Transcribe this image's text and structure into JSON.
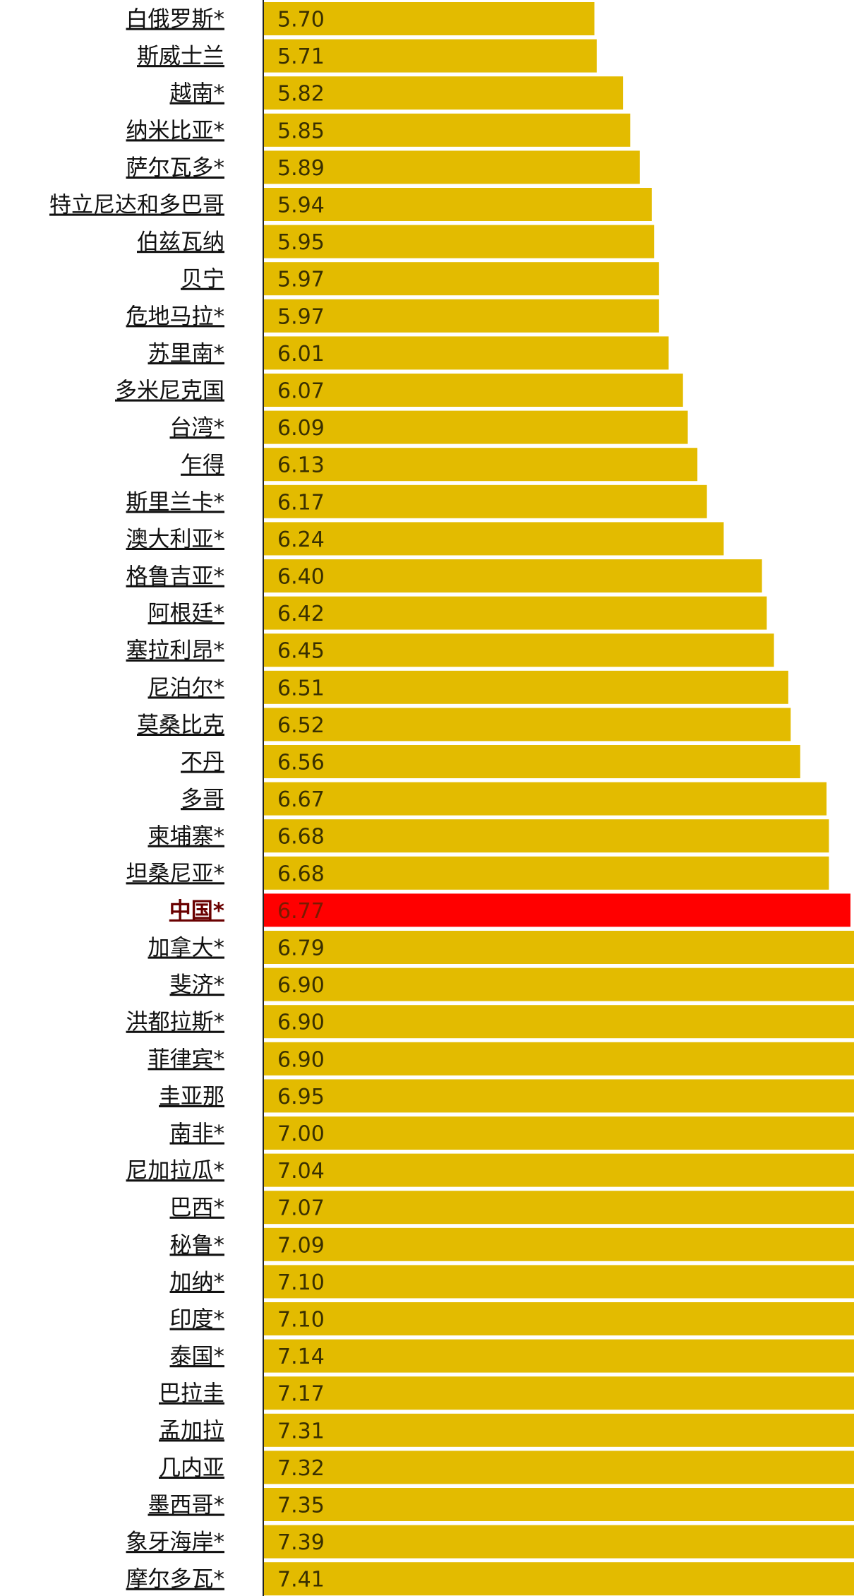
{
  "chart_data": {
    "type": "bar",
    "orientation": "horizontal",
    "categories": [
      "白俄罗斯*",
      "斯威士兰",
      "越南*",
      "纳米比亚*",
      "萨尔瓦多*",
      "特立尼达和多巴哥",
      "伯兹瓦纳",
      "贝宁",
      "危地马拉*",
      "苏里南*",
      "多米尼克国",
      "台湾*",
      "乍得",
      "斯里兰卡*",
      "澳大利亚*",
      "格鲁吉亚*",
      "阿根廷*",
      "塞拉利昂*",
      "尼泊尔*",
      "莫桑比克",
      "不丹",
      "多哥",
      "柬埔寨*",
      "坦桑尼亚*",
      "中国*",
      "加拿大*",
      "斐济*",
      "洪都拉斯*",
      "菲律宾*",
      "圭亚那",
      "南非*",
      "尼加拉瓜*",
      "巴西*",
      "秘鲁*",
      "加纳*",
      "印度*",
      "泰国*",
      "巴拉圭",
      "孟加拉",
      "几内亚",
      "墨西哥*",
      "象牙海岸*",
      "摩尔多瓦*"
    ],
    "values": [
      5.7,
      5.71,
      5.82,
      5.85,
      5.89,
      5.94,
      5.95,
      5.97,
      5.97,
      6.01,
      6.07,
      6.09,
      6.13,
      6.17,
      6.24,
      6.4,
      6.42,
      6.45,
      6.51,
      6.52,
      6.56,
      6.67,
      6.68,
      6.68,
      6.77,
      6.79,
      6.9,
      6.9,
      6.9,
      6.95,
      7.0,
      7.04,
      7.07,
      7.09,
      7.1,
      7.1,
      7.14,
      7.17,
      7.31,
      7.32,
      7.35,
      7.39,
      7.41
    ],
    "value_labels": [
      "5.70",
      "5.71",
      "5.82",
      "5.85",
      "5.89",
      "5.94",
      "5.95",
      "5.97",
      "5.97",
      "6.01",
      "6.07",
      "6.09",
      "6.13",
      "6.17",
      "6.24",
      "6.40",
      "6.42",
      "6.45",
      "6.51",
      "6.52",
      "6.56",
      "6.67",
      "6.68",
      "6.68",
      "6.77",
      "6.79",
      "6.90",
      "6.90",
      "6.90",
      "6.95",
      "7.00",
      "7.04",
      "7.07",
      "7.09",
      "7.10",
      "7.10",
      "7.14",
      "7.17",
      "7.31",
      "7.32",
      "7.35",
      "7.39",
      "7.41"
    ],
    "highlight_category": "中国*",
    "colors": {
      "bar": "#e3bb00",
      "highlight_bar": "#ff0000",
      "value_text": "#3a3000",
      "label_text": "#111111",
      "highlight_label_text": "#6a0000"
    },
    "title": "",
    "xlabel": "",
    "ylabel": "",
    "grid": false,
    "legend": "none"
  }
}
